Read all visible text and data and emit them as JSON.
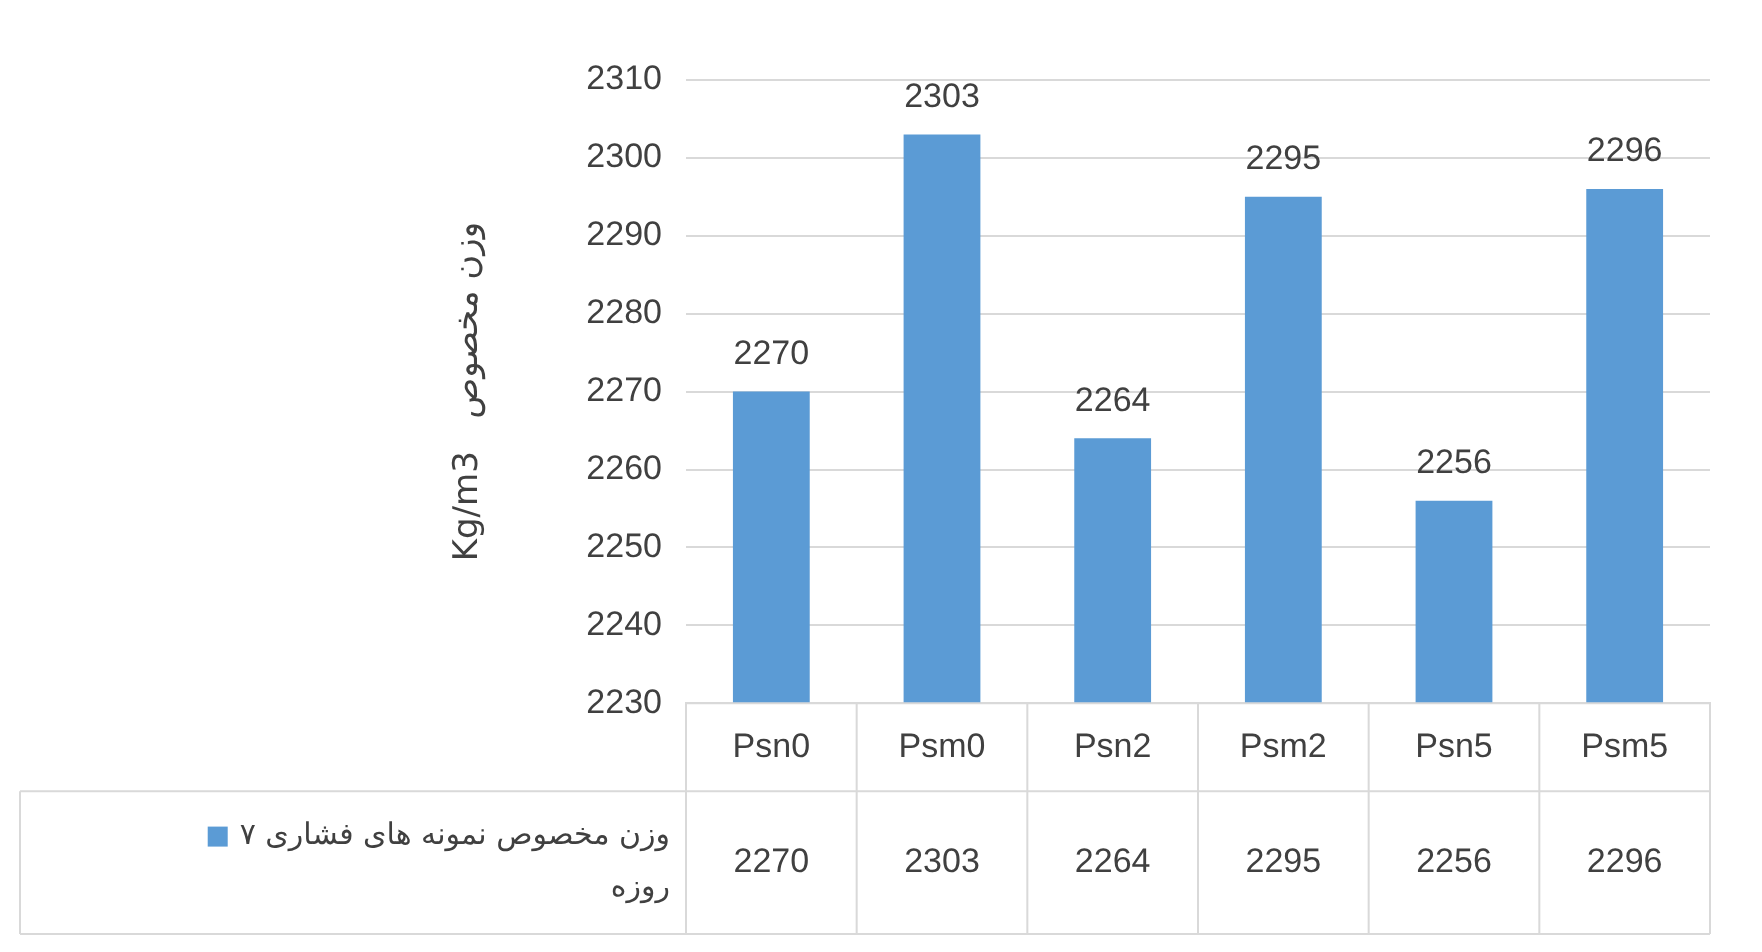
{
  "chart_data": {
    "type": "bar",
    "ylabel": "Kg/m3   وزن مخصوص",
    "categories": [
      "Psn0",
      "Psm0",
      "Psn2",
      "Psm2",
      "Psn5",
      "Psm5"
    ],
    "series": [
      {
        "name": "وزن مخصوص نمونه های فشاری ۷ روزه",
        "color": "#5b9bd5",
        "values": [
          2270,
          2303,
          2264,
          2295,
          2256,
          2296
        ]
      }
    ],
    "annotations": [
      "2270",
      "2303",
      "2264",
      "2295",
      "2256",
      "2296"
    ],
    "ylim": [
      2230,
      2310
    ],
    "yticks": [
      2230,
      2240,
      2250,
      2260,
      2270,
      2280,
      2290,
      2300,
      2310
    ],
    "grid": "y",
    "data_labels": true,
    "legend": "bottom left"
  }
}
